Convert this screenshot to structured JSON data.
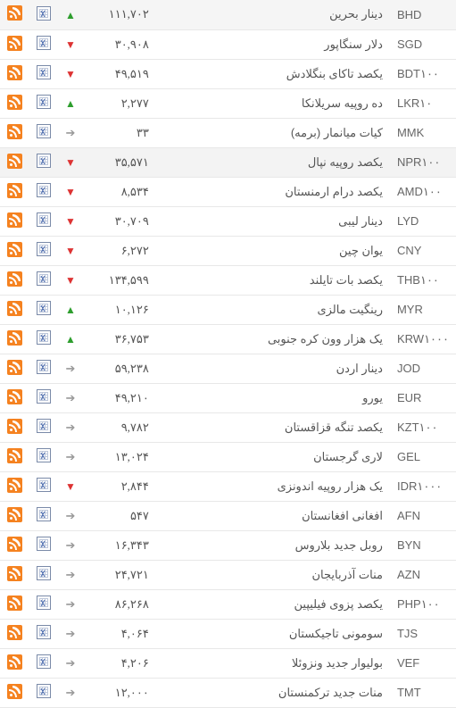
{
  "rows": [
    {
      "code": "BHD",
      "name": "دینار بحرین",
      "value": "۱۱۱,۷۰۲",
      "trend": "up"
    },
    {
      "code": "SGD",
      "name": "دلار سنگاپور",
      "value": "۳۰,۹۰۸",
      "trend": "down"
    },
    {
      "code": "BDT۱۰۰",
      "name": "یکصد تاکای بنگلادش",
      "value": "۴۹,۵۱۹",
      "trend": "down"
    },
    {
      "code": "LKR۱۰",
      "name": "ده روپیه سریلانکا",
      "value": "۲,۲۷۷",
      "trend": "up"
    },
    {
      "code": "MMK",
      "name": "کیات میانمار (برمه)",
      "value": "۳۳",
      "trend": "neutral"
    },
    {
      "code": "NPR۱۰۰",
      "name": "یکصد روپیه نپال",
      "value": "۳۵,۵۷۱",
      "trend": "down",
      "highlight": true
    },
    {
      "code": "AMD۱۰۰",
      "name": "یکصد درام ارمنستان",
      "value": "۸,۵۳۴",
      "trend": "down"
    },
    {
      "code": "LYD",
      "name": "دینار لیبی",
      "value": "۳۰,۷۰۹",
      "trend": "down"
    },
    {
      "code": "CNY",
      "name": "یوان چین",
      "value": "۶,۲۷۲",
      "trend": "down"
    },
    {
      "code": "THB۱۰۰",
      "name": "یکصد بات تایلند",
      "value": "۱۳۴,۵۹۹",
      "trend": "down"
    },
    {
      "code": "MYR",
      "name": "رینگیت مالزی",
      "value": "۱۰,۱۲۶",
      "trend": "up"
    },
    {
      "code": "KRW۱۰۰۰",
      "name": "یک هزار وون کره جنوبی",
      "value": "۳۶,۷۵۳",
      "trend": "up"
    },
    {
      "code": "JOD",
      "name": "دینار اردن",
      "value": "۵۹,۲۳۸",
      "trend": "neutral"
    },
    {
      "code": "EUR",
      "name": "یورو",
      "value": "۴۹,۲۱۰",
      "trend": "neutral"
    },
    {
      "code": "KZT۱۰۰",
      "name": "یکصد تنگه قزاقستان",
      "value": "۹,۷۸۲",
      "trend": "neutral"
    },
    {
      "code": "GEL",
      "name": "لاری گرجستان",
      "value": "۱۳,۰۲۴",
      "trend": "neutral"
    },
    {
      "code": "IDR۱۰۰۰",
      "name": "یک هزار روپیه اندونزی",
      "value": "۲,۸۴۴",
      "trend": "down"
    },
    {
      "code": "AFN",
      "name": "افغانی افغانستان",
      "value": "۵۴۷",
      "trend": "neutral"
    },
    {
      "code": "BYN",
      "name": "روبل جدید بلاروس",
      "value": "۱۶,۳۴۳",
      "trend": "neutral"
    },
    {
      "code": "AZN",
      "name": "منات آذربایجان",
      "value": "۲۴,۷۲۱",
      "trend": "neutral"
    },
    {
      "code": "PHP۱۰۰",
      "name": "یکصد پزوی فیلیپین",
      "value": "۸۶,۲۶۸",
      "trend": "neutral"
    },
    {
      "code": "TJS",
      "name": "سومونی تاجیکستان",
      "value": "۴,۰۶۴",
      "trend": "neutral"
    },
    {
      "code": "VEF",
      "name": "بولیوار جدید ونزوئلا",
      "value": "۴,۲۰۶",
      "trend": "neutral"
    },
    {
      "code": "TMT",
      "name": "منات جدید ترکمنستان",
      "value": "۱۲,۰۰۰",
      "trend": "neutral"
    }
  ],
  "trend_glyphs": {
    "up": "▲",
    "down": "▼",
    "neutral": "➔"
  }
}
